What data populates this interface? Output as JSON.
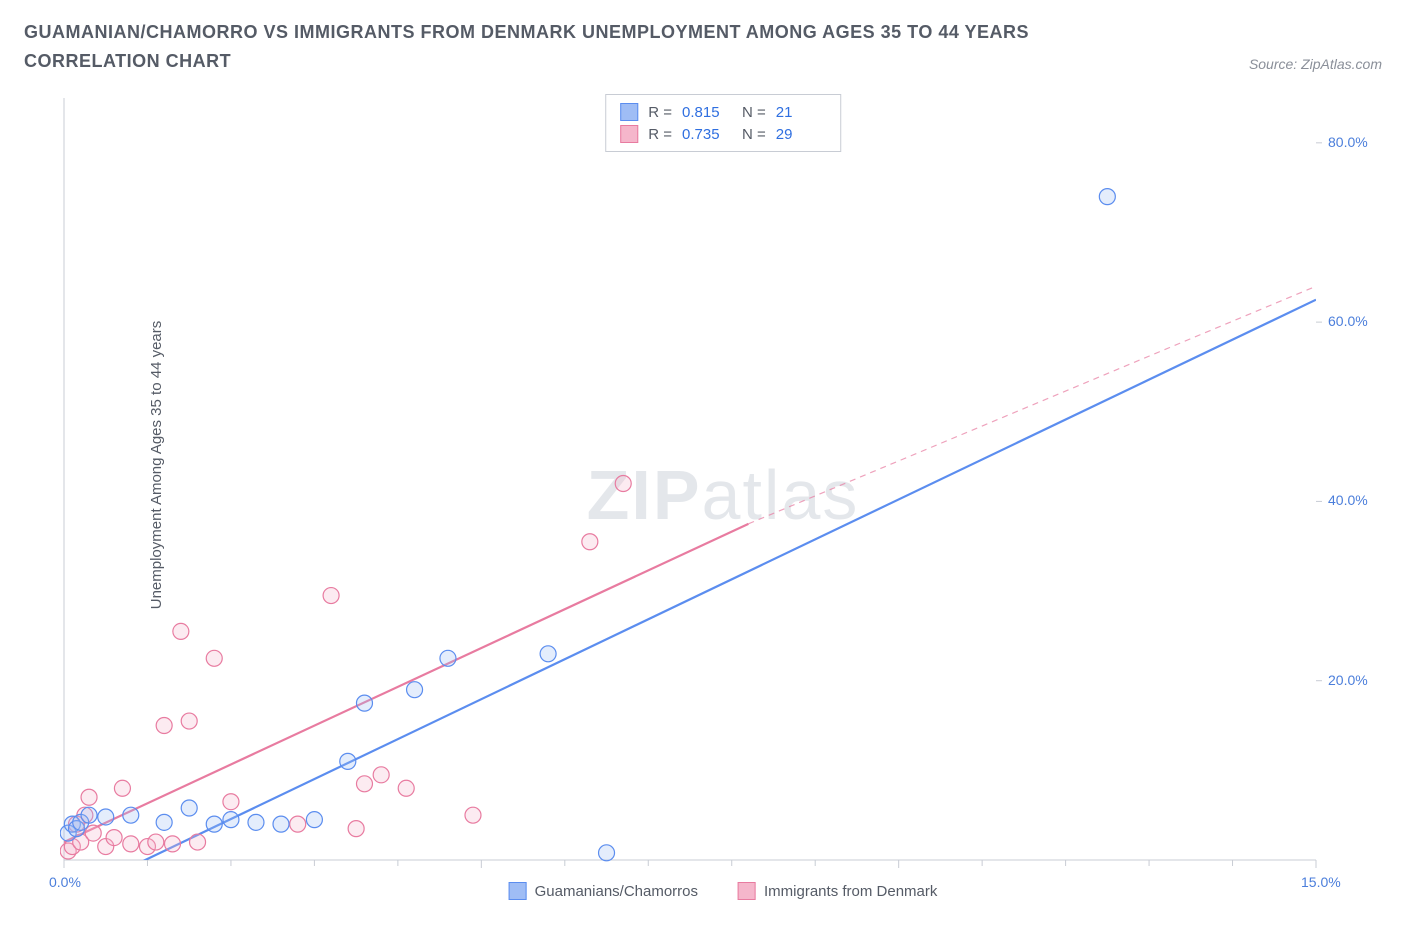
{
  "header": {
    "title": "GUAMANIAN/CHAMORRO VS IMMIGRANTS FROM DENMARK UNEMPLOYMENT AMONG AGES 35 TO 44 YEARS CORRELATION CHART",
    "source": "Source: ZipAtlas.com"
  },
  "y_axis_label": "Unemployment Among Ages 35 to 44 years",
  "watermark": {
    "bold": "ZIP",
    "rest": "atlas"
  },
  "chart": {
    "type": "scatter",
    "xlim": [
      0,
      15
    ],
    "ylim": [
      0,
      85
    ],
    "x_ticks": [
      0,
      5,
      10,
      15
    ],
    "x_tick_labels": [
      "0.0%",
      "",
      "",
      "15.0%"
    ],
    "x_minor_ticks": [
      1,
      2,
      3,
      4,
      6,
      7,
      8,
      9,
      11,
      12,
      13,
      14
    ],
    "y_ticks": [
      20,
      40,
      60,
      80
    ],
    "y_tick_labels": [
      "20.0%",
      "40.0%",
      "60.0%",
      "80.0%"
    ],
    "background_color": "#ffffff",
    "axis_color": "#c8ccd4",
    "tick_color": "#c8ccd4",
    "grid_color": "#eef0f4",
    "marker_radius": 8,
    "marker_stroke_width": 1.2,
    "marker_fill_opacity": 0.28,
    "line_width": 2.2,
    "series": [
      {
        "id": "guamanians",
        "label": "Guamanians/Chamorros",
        "color": "#5b8def",
        "fill": "#9fbdf5",
        "R": "0.815",
        "N": "21",
        "points": [
          [
            0.05,
            3.0
          ],
          [
            0.1,
            4.0
          ],
          [
            0.15,
            3.5
          ],
          [
            0.2,
            4.2
          ],
          [
            0.3,
            5.0
          ],
          [
            0.5,
            4.8
          ],
          [
            0.8,
            5.0
          ],
          [
            1.2,
            4.2
          ],
          [
            1.5,
            5.8
          ],
          [
            1.8,
            4.0
          ],
          [
            2.0,
            4.5
          ],
          [
            2.3,
            4.2
          ],
          [
            2.6,
            4.0
          ],
          [
            3.0,
            4.5
          ],
          [
            3.4,
            11.0
          ],
          [
            3.6,
            17.5
          ],
          [
            4.2,
            19.0
          ],
          [
            4.6,
            22.5
          ],
          [
            5.8,
            23.0
          ],
          [
            6.5,
            0.8
          ],
          [
            12.5,
            74.0
          ]
        ],
        "trend": {
          "x1": 0.3,
          "y1": -3.0,
          "x2": 15.0,
          "y2": 62.5,
          "dash": false
        }
      },
      {
        "id": "denmark",
        "label": "Immigrants from Denmark",
        "color": "#e87ba0",
        "fill": "#f5b6cb",
        "R": "0.735",
        "N": "29",
        "points": [
          [
            0.05,
            1.0
          ],
          [
            0.1,
            1.5
          ],
          [
            0.15,
            4.0
          ],
          [
            0.2,
            2.0
          ],
          [
            0.25,
            5.0
          ],
          [
            0.3,
            7.0
          ],
          [
            0.35,
            3.0
          ],
          [
            0.5,
            1.5
          ],
          [
            0.6,
            2.5
          ],
          [
            0.7,
            8.0
          ],
          [
            0.8,
            1.8
          ],
          [
            1.0,
            1.5
          ],
          [
            1.1,
            2.0
          ],
          [
            1.2,
            15.0
          ],
          [
            1.3,
            1.8
          ],
          [
            1.4,
            25.5
          ],
          [
            1.5,
            15.5
          ],
          [
            1.6,
            2.0
          ],
          [
            1.8,
            22.5
          ],
          [
            2.0,
            6.5
          ],
          [
            2.8,
            4.0
          ],
          [
            3.2,
            29.5
          ],
          [
            3.5,
            3.5
          ],
          [
            3.6,
            8.5
          ],
          [
            3.8,
            9.5
          ],
          [
            4.1,
            8.0
          ],
          [
            4.9,
            5.0
          ],
          [
            6.3,
            35.5
          ],
          [
            6.7,
            42.0
          ]
        ],
        "trend_solid": {
          "x1": 0.0,
          "y1": 2.0,
          "x2": 8.2,
          "y2": 37.5
        },
        "trend_dash": {
          "x1": 8.2,
          "y1": 37.5,
          "x2": 15.0,
          "y2": 64.0
        }
      }
    ]
  },
  "legend_top": {
    "r_label": "R =",
    "n_label": "N ="
  },
  "colors": {
    "title": "#555b66",
    "source": "#8a8f99",
    "tick_label": "#4b7edb"
  }
}
